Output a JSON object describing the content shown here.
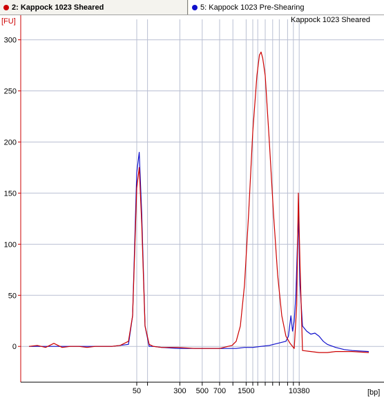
{
  "tabs": [
    {
      "label": "2: Kappock 1023 Sheared",
      "color": "#cc0000",
      "active": true
    },
    {
      "label": "5: Kappock 1023 Pre-Shearing",
      "color": "#1010cc",
      "active": false
    }
  ],
  "chart_data": {
    "type": "line",
    "title": "Kappock 1023 Sheared",
    "ylabel": "[FU]",
    "xlabel": "[bp]",
    "ylim": [
      -35,
      320
    ],
    "y_ticks": [
      0,
      50,
      100,
      150,
      200,
      250,
      300
    ],
    "x_tick_labels": [
      "50",
      "300",
      "500",
      "700",
      "1500",
      "10380"
    ],
    "x_tick_positions_bp": [
      50,
      300,
      500,
      700,
      1500,
      10380
    ],
    "grid": true,
    "series": [
      {
        "name": "2: Kappock 1023 Sheared",
        "color": "#cc0000",
        "points": [
          [
            -12,
            0
          ],
          [
            -11,
            1
          ],
          [
            -10,
            -1
          ],
          [
            -9,
            3
          ],
          [
            -8,
            -1
          ],
          [
            -7,
            0
          ],
          [
            -6,
            0
          ],
          [
            -5,
            -1
          ],
          [
            -4,
            0
          ],
          [
            -3,
            0
          ],
          [
            -2,
            0
          ],
          [
            -1,
            1
          ],
          [
            0,
            5
          ],
          [
            0.5,
            30
          ],
          [
            1,
            155
          ],
          [
            1.3,
            175
          ],
          [
            1.6,
            120
          ],
          [
            2,
            20
          ],
          [
            2.5,
            2
          ],
          [
            3,
            0
          ],
          [
            4,
            -1
          ],
          [
            6,
            -1
          ],
          [
            8,
            -2
          ],
          [
            10,
            -2
          ],
          [
            11,
            -2
          ],
          [
            11.5,
            -1
          ],
          [
            12,
            0
          ],
          [
            12.5,
            1
          ],
          [
            13,
            5
          ],
          [
            13.5,
            20
          ],
          [
            14,
            60
          ],
          [
            14.5,
            130
          ],
          [
            15,
            210
          ],
          [
            15.5,
            265
          ],
          [
            15.8,
            285
          ],
          [
            16,
            288
          ],
          [
            16.2,
            282
          ],
          [
            16.5,
            265
          ],
          [
            17,
            200
          ],
          [
            17.5,
            130
          ],
          [
            18,
            70
          ],
          [
            18.5,
            30
          ],
          [
            19,
            10
          ],
          [
            19.5,
            3
          ],
          [
            20,
            -2
          ],
          [
            20.3,
            40
          ],
          [
            20.5,
            150
          ],
          [
            20.7,
            80
          ],
          [
            21,
            -4
          ],
          [
            22,
            -5
          ],
          [
            23,
            -6
          ],
          [
            24,
            -6
          ],
          [
            25,
            -5
          ],
          [
            26,
            -5
          ],
          [
            27,
            -5
          ],
          [
            29,
            -6
          ]
        ]
      },
      {
        "name": "5: Kappock 1023 Pre-Shearing",
        "color": "#1010cc",
        "points": [
          [
            -12,
            0
          ],
          [
            -10,
            0
          ],
          [
            -8,
            0
          ],
          [
            -6,
            0
          ],
          [
            -4,
            0
          ],
          [
            -2,
            0
          ],
          [
            0,
            2
          ],
          [
            0.5,
            30
          ],
          [
            1,
            170
          ],
          [
            1.3,
            190
          ],
          [
            1.6,
            130
          ],
          [
            2,
            20
          ],
          [
            2.5,
            0
          ],
          [
            3,
            0
          ],
          [
            4,
            -1
          ],
          [
            6,
            -2
          ],
          [
            8,
            -2
          ],
          [
            10,
            -2
          ],
          [
            11,
            -2
          ],
          [
            12,
            -2
          ],
          [
            13,
            -2
          ],
          [
            14,
            -1
          ],
          [
            15,
            -1
          ],
          [
            16,
            0
          ],
          [
            17,
            1
          ],
          [
            18,
            3
          ],
          [
            19,
            5
          ],
          [
            19.3,
            10
          ],
          [
            19.6,
            30
          ],
          [
            19.8,
            15
          ],
          [
            20,
            25
          ],
          [
            20.2,
            50
          ],
          [
            20.5,
            130
          ],
          [
            20.7,
            60
          ],
          [
            21,
            20
          ],
          [
            21.5,
            15
          ],
          [
            22,
            12
          ],
          [
            22.5,
            13
          ],
          [
            23,
            10
          ],
          [
            23.5,
            5
          ],
          [
            24,
            2
          ],
          [
            25,
            -1
          ],
          [
            26,
            -3
          ],
          [
            27,
            -4
          ],
          [
            29,
            -5
          ]
        ]
      }
    ]
  }
}
